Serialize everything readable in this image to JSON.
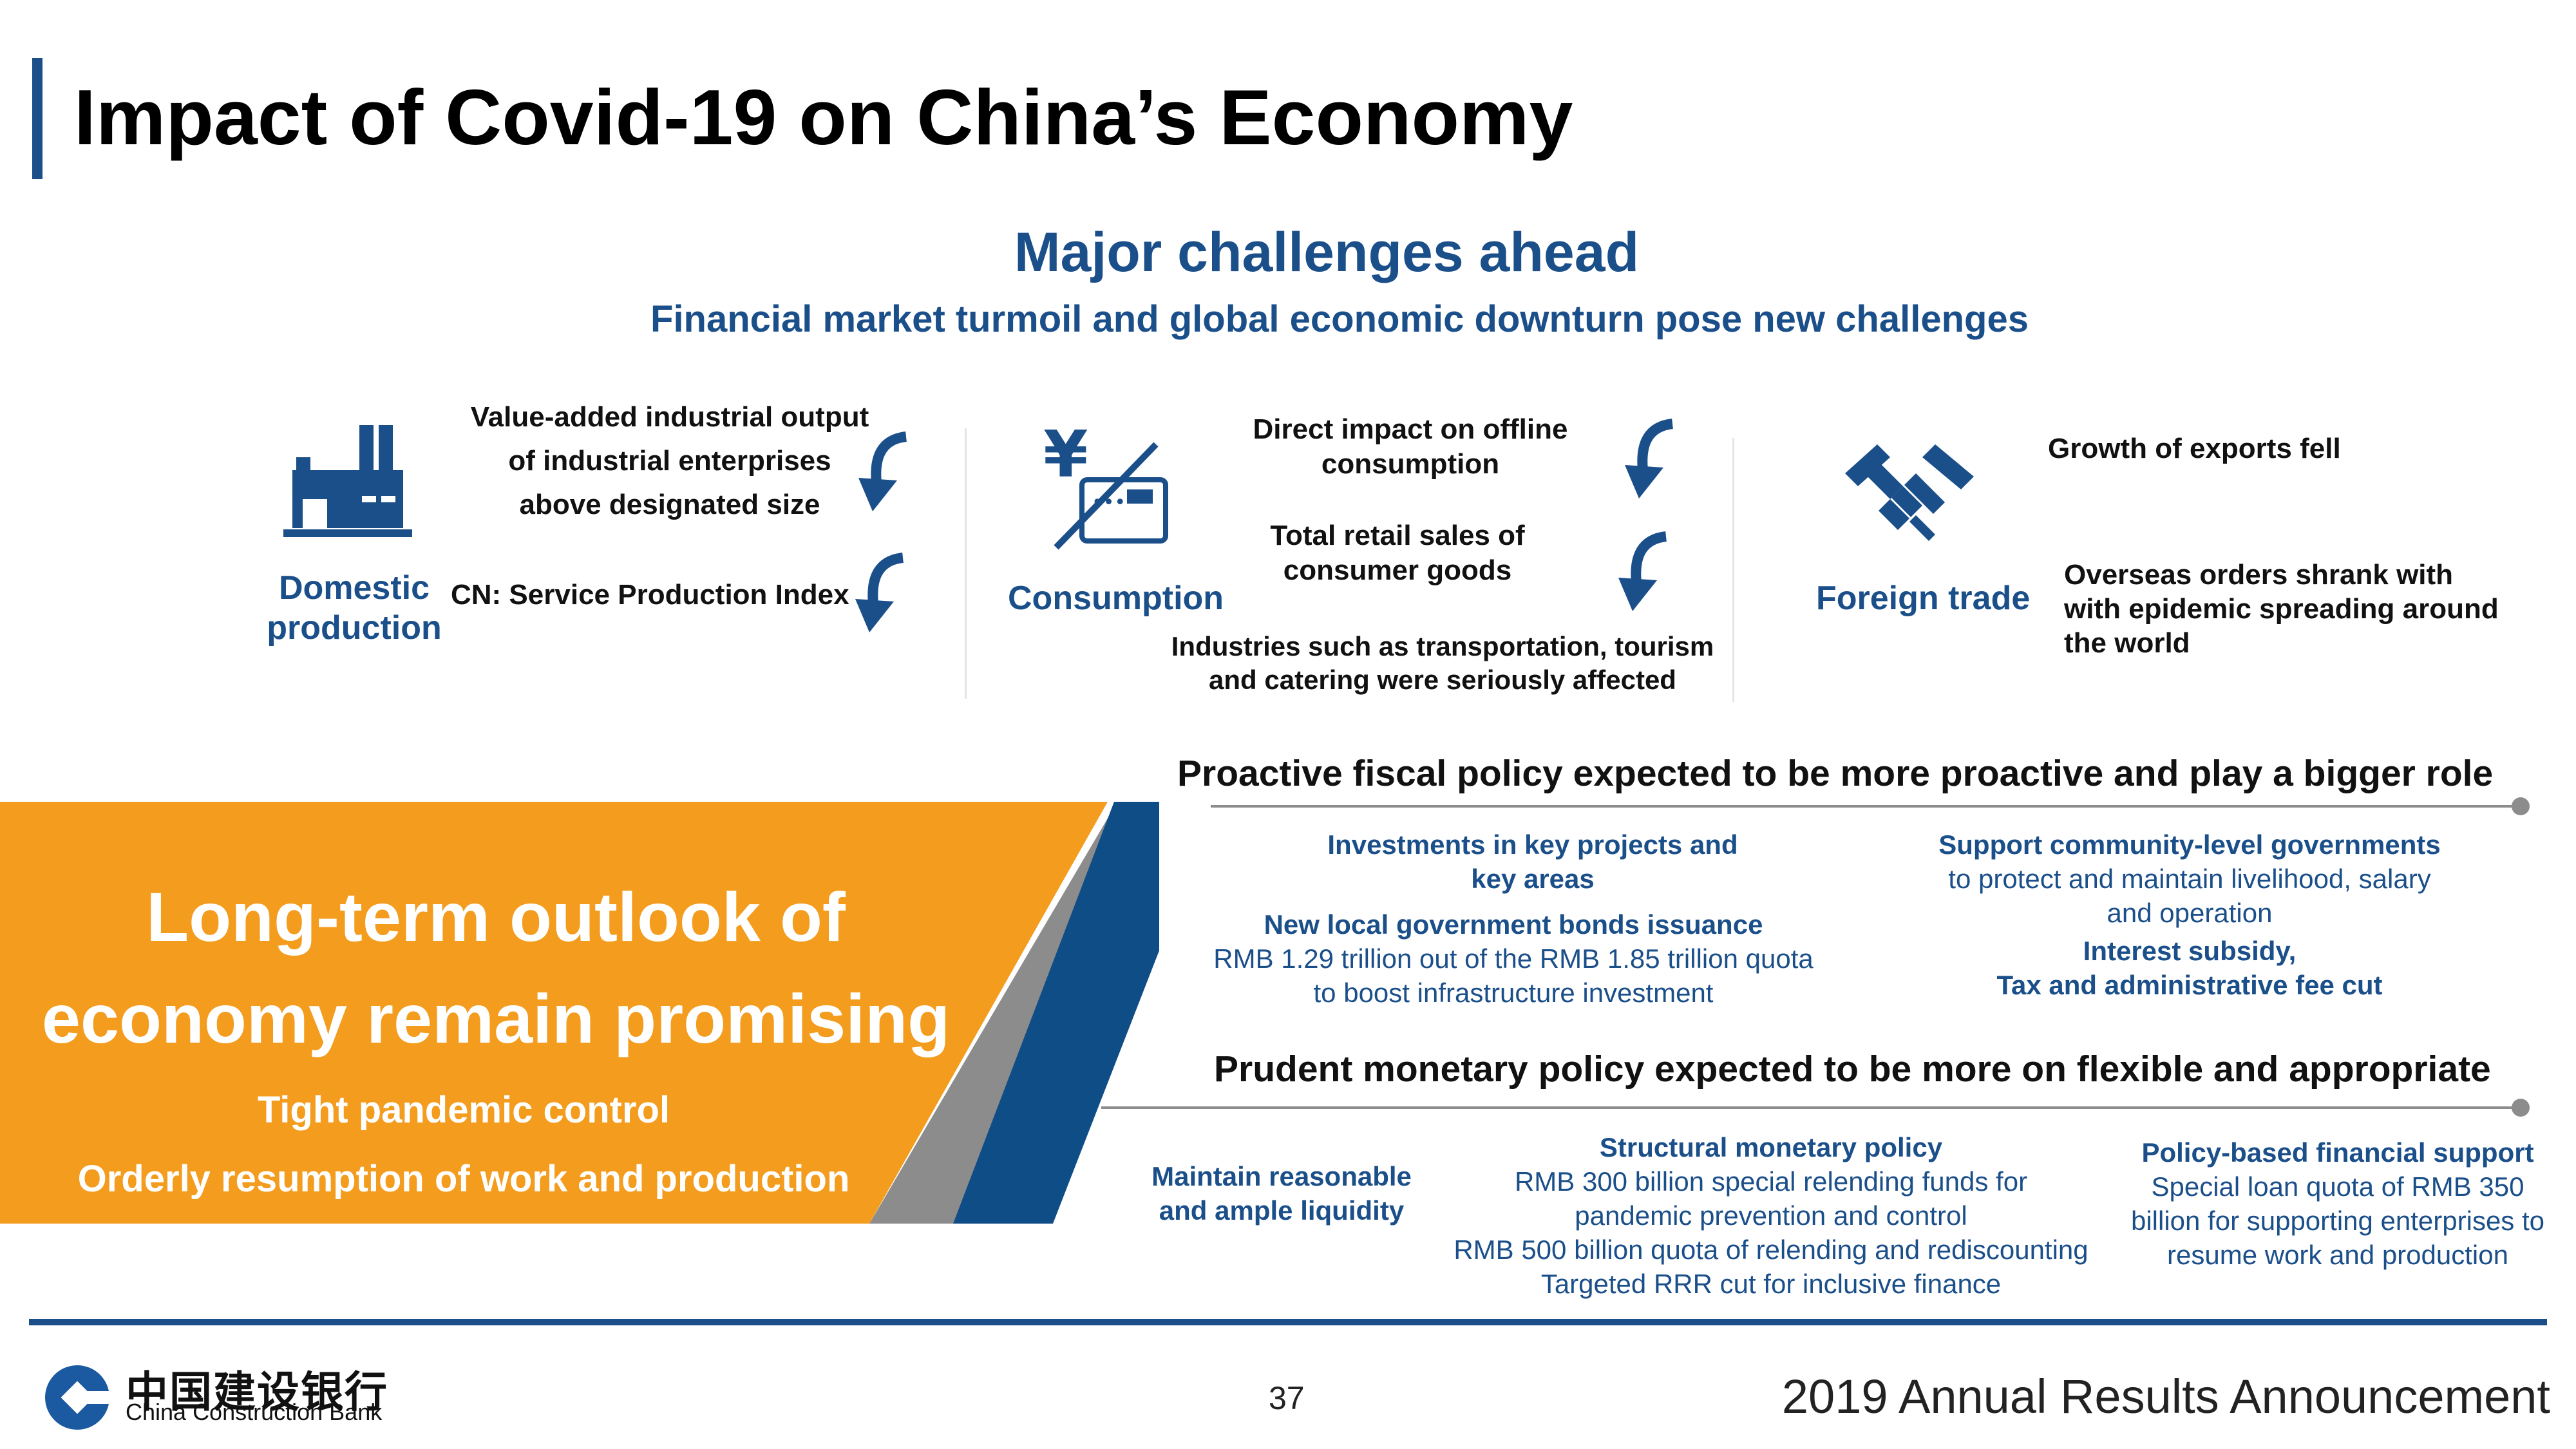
{
  "header": {
    "title": "Impact of Covid-19 on China’s Economy"
  },
  "intro": {
    "heading": "Major challenges ahead",
    "subheading": "Financial market turmoil and global economic downturn pose new challenges"
  },
  "impacts": {
    "domestic": {
      "label_line1": "Domestic",
      "label_line2": "production",
      "item1_line1": "Value-added  industrial output",
      "item1_line2": "of industrial enterprises",
      "item1_line3": "above designated size",
      "item2": "CN: Service Production Index"
    },
    "consumption": {
      "label": "Consumption",
      "item1_line1": "Direct impact on offline",
      "item1_line2": "consumption",
      "item2_line1": "Total retail sales of",
      "item2_line2": "consumer goods",
      "item3_line1": "Industries such as transportation, tourism",
      "item3_line2": "and catering were seriously affected"
    },
    "foreign_trade": {
      "label": "Foreign trade",
      "item1": "Growth of exports fell",
      "item2_line1": "Overseas orders shrank with",
      "item2_line2": "with epidemic spreading around",
      "item2_line3": "the world"
    }
  },
  "outlook": {
    "title_line1": "Long-term outlook of",
    "title_line2": "economy remain promising",
    "point1": "Tight pandemic control",
    "point2": "Orderly resumption of work and production"
  },
  "fiscal": {
    "heading": "Proactive fiscal policy expected to be more proactive and play a bigger role",
    "investments_line1": "Investments in key projects and",
    "investments_line2": "key areas",
    "bonds_title": "New local government bonds issuance",
    "bonds_line1": "RMB 1.29 trillion out of the RMB 1.85 trillion quota",
    "bonds_line2": "to boost infrastructure investment",
    "support_title": "Support community-level governments",
    "support_line1": "to protect and maintain livelihood, salary",
    "support_line2": "and operation",
    "subsidy_line1": "Interest subsidy,",
    "subsidy_line2": "Tax and administrative fee cut"
  },
  "monetary": {
    "heading": "Prudent monetary policy expected to be more on flexible and appropriate",
    "liquidity_line1": "Maintain reasonable",
    "liquidity_line2": "and ample liquidity",
    "structural_title": "Structural monetary policy",
    "structural_line1": "RMB 300 billion special relending funds for",
    "structural_line2": "pandemic prevention and control",
    "structural_line3": "RMB 500 billion quota of relending and rediscounting",
    "structural_line4": "Targeted RRR cut for inclusive finance",
    "financial_title": "Policy-based financial support",
    "financial_line1": "Special loan quota of RMB 350",
    "financial_line2": "billion for  supporting enterprises to",
    "financial_line3": "resume work and production"
  },
  "footer": {
    "page_number": "37",
    "announcement": "2019 Annual Results Announcement",
    "logo_cn": "中国建设银行",
    "logo_en": "China Construction Bank"
  },
  "colors": {
    "brand_blue": "#1b4f8a",
    "orange": "#f39c1d",
    "gray": "#8c8c8c"
  },
  "icons": [
    "factory-icon",
    "yen-card-icon",
    "handshake-icon",
    "down-arrow-icon",
    "ccb-logo-icon"
  ]
}
